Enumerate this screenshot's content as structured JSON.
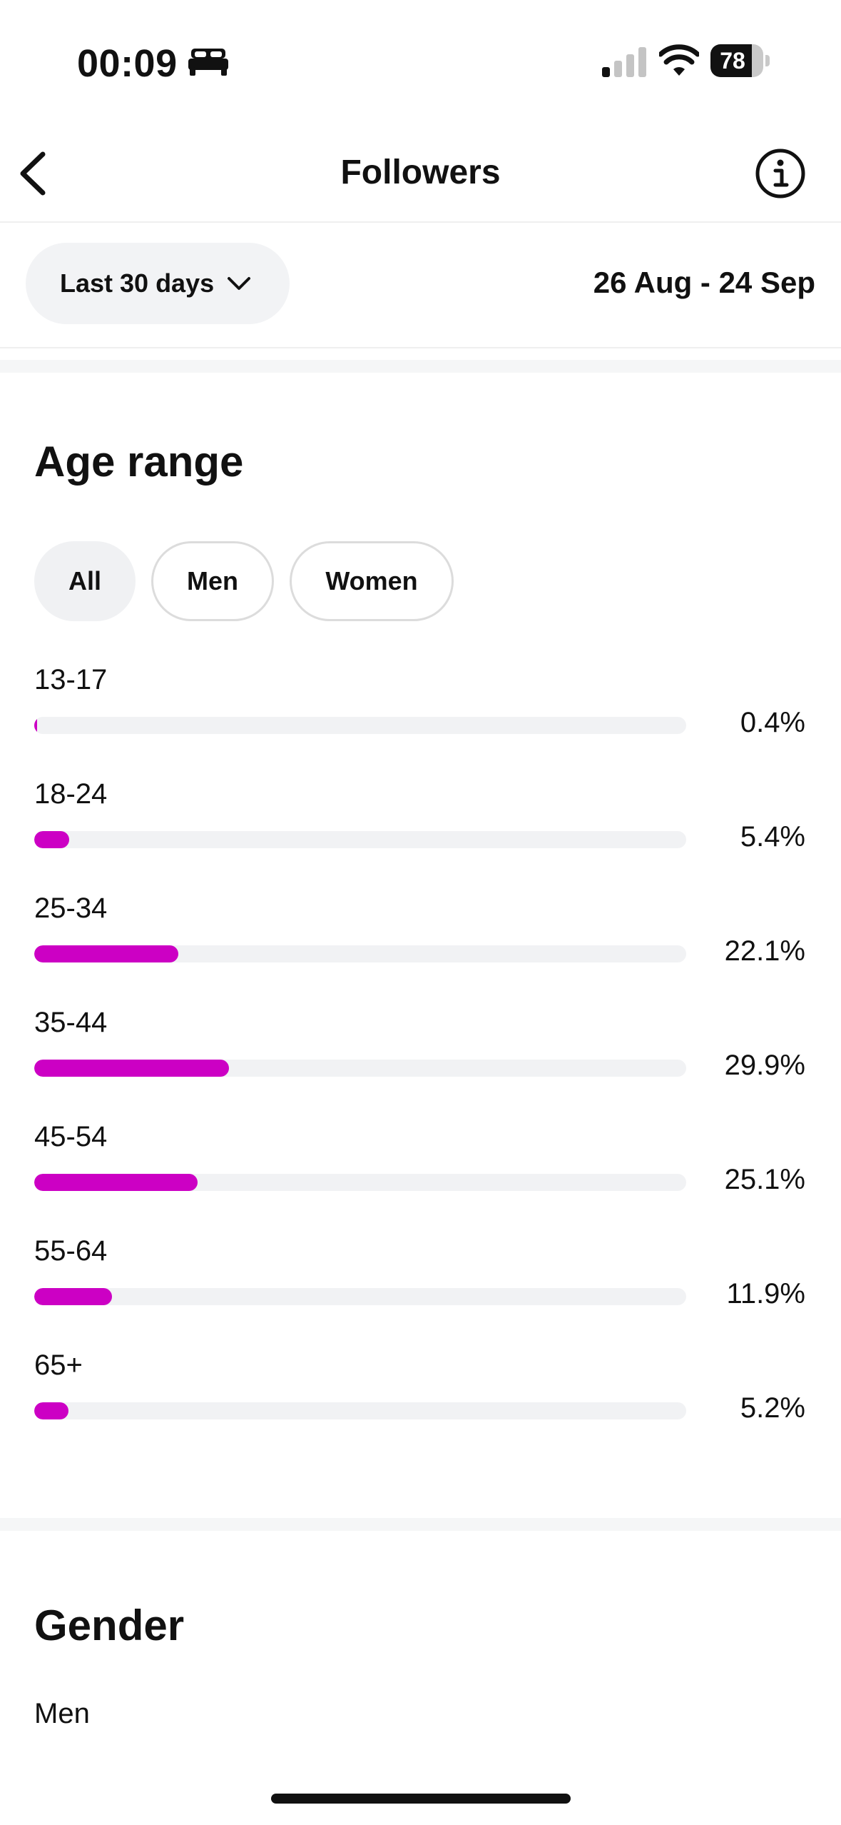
{
  "status_bar": {
    "time": "00:09",
    "battery_level": "78",
    "battery_fraction": 0.78,
    "icons": [
      "bed-icon",
      "signal-icon",
      "wifi-icon",
      "battery-icon"
    ]
  },
  "header": {
    "title": "Followers",
    "back_icon": "chevron-left-icon",
    "info_icon": "info-icon"
  },
  "filter": {
    "range_label": "Last 30 days",
    "date_range": "26 Aug - 24 Sep"
  },
  "age_section": {
    "title": "Age range",
    "chips": [
      {
        "label": "All",
        "selected": true
      },
      {
        "label": "Men",
        "selected": false
      },
      {
        "label": "Women",
        "selected": false
      }
    ],
    "rows": [
      {
        "label": "13-17",
        "percent_text": "0.4%",
        "value": 0.4
      },
      {
        "label": "18-24",
        "percent_text": "5.4%",
        "value": 5.4
      },
      {
        "label": "25-34",
        "percent_text": "22.1%",
        "value": 22.1
      },
      {
        "label": "35-44",
        "percent_text": "29.9%",
        "value": 29.9
      },
      {
        "label": "45-54",
        "percent_text": "25.1%",
        "value": 25.1
      },
      {
        "label": "55-64",
        "percent_text": "11.9%",
        "value": 11.9
      },
      {
        "label": "65+",
        "percent_text": "5.2%",
        "value": 5.2
      }
    ],
    "bar_color": "#cc00c4"
  },
  "gender_section": {
    "title": "Gender",
    "first_row_label": "Men"
  }
}
